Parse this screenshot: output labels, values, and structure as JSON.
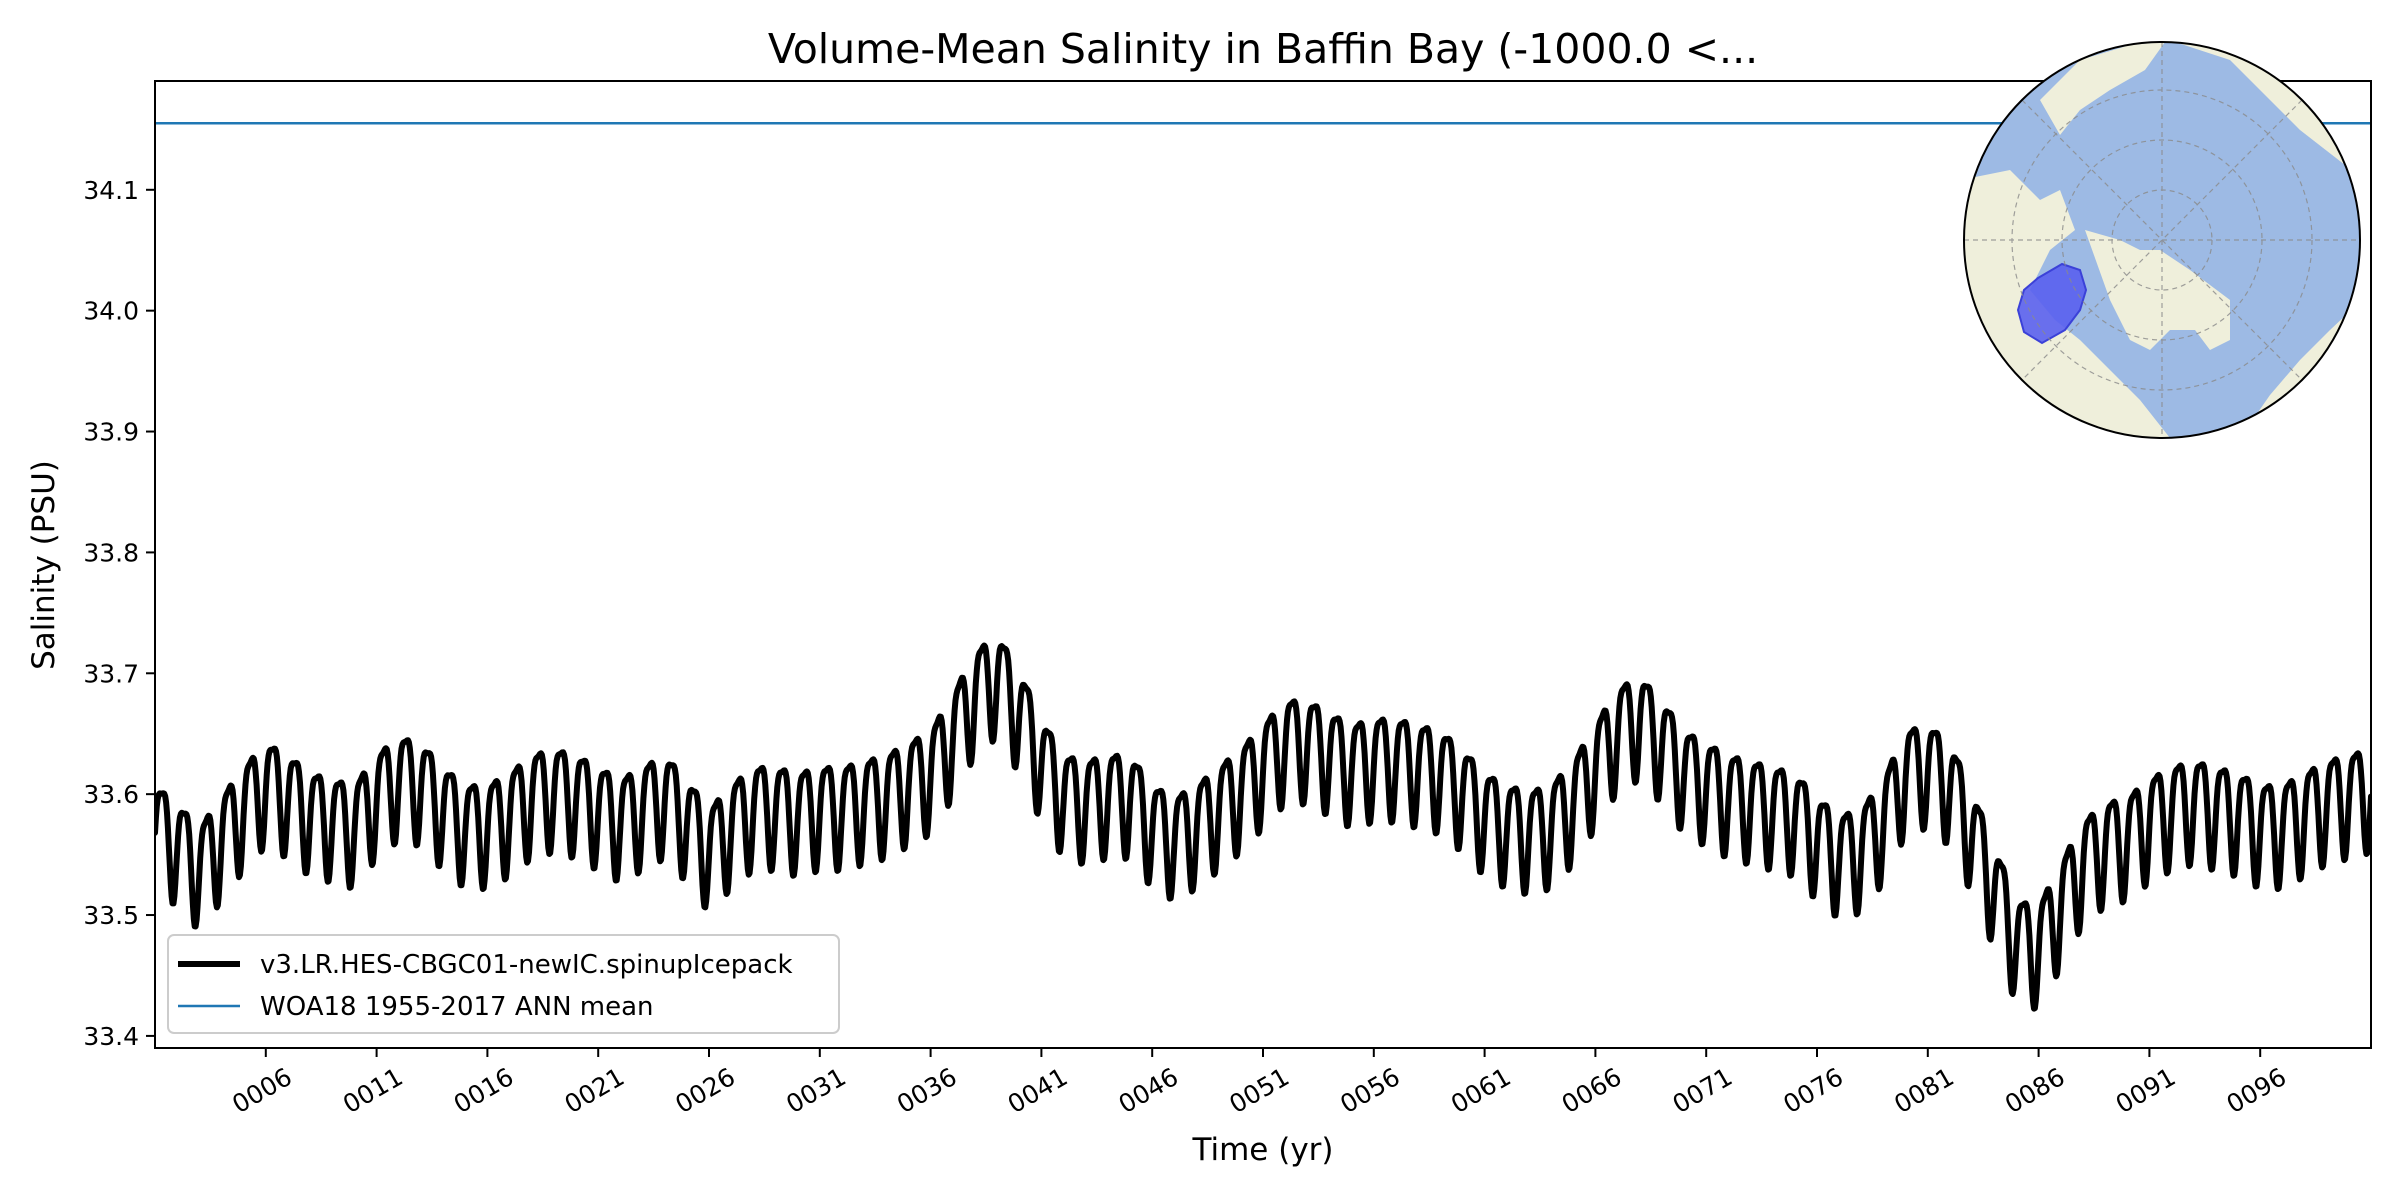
{
  "chart_data": {
    "type": "line",
    "title": "Volume-Mean Salinity in Baffin Bay (-1000.0 <...",
    "xlabel": "Time (yr)",
    "ylabel": "Salinity (PSU)",
    "xlim": [
      1,
      101
    ],
    "ylim": [
      33.39,
      34.19
    ],
    "x_ticks": [
      "0006",
      "0011",
      "0016",
      "0021",
      "0026",
      "0031",
      "0036",
      "0041",
      "0046",
      "0051",
      "0056",
      "0061",
      "0066",
      "0071",
      "0076",
      "0081",
      "0086",
      "0091",
      "0096"
    ],
    "y_ticks": [
      "33.4",
      "33.5",
      "33.6",
      "33.7",
      "33.8",
      "33.9",
      "34.0",
      "34.1"
    ],
    "grid": false,
    "legend_placement": "lower-left",
    "series": [
      {
        "name": "v3.LR.HES-CBGC01-newIC.spinupIcepack",
        "color": "#000000",
        "kind": "seasonal-cycle",
        "x_start": 1,
        "annual_mean_x": [
          1,
          2,
          3,
          4,
          5,
          6,
          7,
          8,
          9,
          10,
          11,
          12,
          13,
          14,
          15,
          16,
          17,
          18,
          19,
          20,
          21,
          22,
          23,
          24,
          25,
          26,
          27,
          28,
          29,
          30,
          31,
          32,
          33,
          34,
          35,
          36,
          37,
          38,
          39,
          40,
          41,
          42,
          43,
          44,
          45,
          46,
          47,
          48,
          49,
          50,
          51,
          52,
          53,
          54,
          55,
          56,
          57,
          58,
          59,
          60,
          61,
          62,
          63,
          64,
          65,
          66,
          67,
          68,
          69,
          70,
          71,
          72,
          73,
          74,
          75,
          76,
          77,
          78,
          79,
          80,
          81,
          82,
          83,
          84,
          85,
          86,
          87,
          88,
          89,
          90,
          91,
          92,
          93,
          94,
          95,
          96,
          97,
          98,
          99,
          100,
          101
        ],
        "annual_mean": [
          33.575,
          33.56,
          33.54,
          33.565,
          33.59,
          33.61,
          33.6,
          33.585,
          33.58,
          33.575,
          33.6,
          33.615,
          33.61,
          33.59,
          33.575,
          33.575,
          33.585,
          33.6,
          33.605,
          33.6,
          33.59,
          33.58,
          33.59,
          33.6,
          33.58,
          33.555,
          33.575,
          33.59,
          33.59,
          33.585,
          33.59,
          33.59,
          33.595,
          33.6,
          33.61,
          33.62,
          33.65,
          33.685,
          33.7,
          33.67,
          33.63,
          33.6,
          33.595,
          33.6,
          33.6,
          33.575,
          33.565,
          33.575,
          33.59,
          33.605,
          33.625,
          33.645,
          33.645,
          33.635,
          33.625,
          33.63,
          33.63,
          33.625,
          33.62,
          33.605,
          33.585,
          33.575,
          33.57,
          33.575,
          33.595,
          33.625,
          33.655,
          33.665,
          33.645,
          33.62,
          33.61,
          33.6,
          33.595,
          33.59,
          33.585,
          33.565,
          33.55,
          33.555,
          33.58,
          33.62,
          33.625,
          33.61,
          33.57,
          33.525,
          33.48,
          33.475,
          33.51,
          33.545,
          33.56,
          33.565,
          33.58,
          33.59,
          33.595,
          33.59,
          33.585,
          33.575,
          33.575,
          33.585,
          33.595,
          33.6,
          33.605
        ],
        "seasonal_amplitude": 0.042,
        "yearly_min": 33.418,
        "yearly_max": 33.755
      },
      {
        "name": "WOA18 1955-2017 ANN mean",
        "color": "#1f77b4",
        "kind": "constant",
        "value": 34.155
      }
    ],
    "inset_map": {
      "projection": "north-polar-stereographic",
      "ocean_color": "#9dbae4",
      "land_color": "#efefdb",
      "region_color": "#5a61ee",
      "region": "Baffin Bay"
    }
  }
}
